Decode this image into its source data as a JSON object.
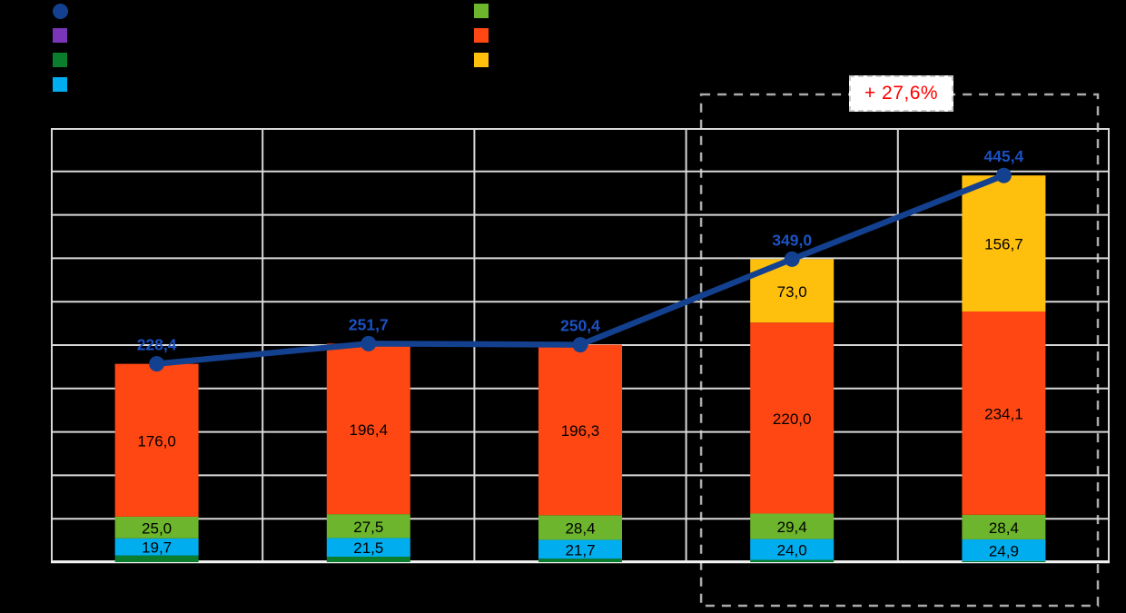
{
  "colors": {
    "background": "#000000",
    "gridline": "#D9D9D9",
    "axis_line": "#F2F2F2",
    "dashed_outline": "#ABABAB",
    "annotation_border": "#C9C9C9",
    "bar_label": "#000000"
  },
  "legend": {
    "left": [
      {
        "id": "total-line",
        "marker": "circle",
        "color": "#14418F",
        "label": ""
      },
      {
        "id": "series-purple",
        "marker": "square",
        "color": "#7A35B8",
        "label": ""
      },
      {
        "id": "series-dark-green",
        "marker": "square",
        "color": "#0B7E2D",
        "label": ""
      },
      {
        "id": "series-cyan",
        "marker": "square",
        "color": "#00AEEF",
        "label": ""
      }
    ],
    "right": [
      {
        "id": "series-green",
        "marker": "square",
        "color": "#6CB52C",
        "label": ""
      },
      {
        "id": "series-orange",
        "marker": "square",
        "color": "#FF4713",
        "label": ""
      },
      {
        "id": "series-yellow",
        "marker": "square",
        "color": "#FFC00D",
        "label": ""
      }
    ]
  },
  "chart_data": {
    "type": "bar",
    "subtype": "stacked-bars-with-total-line",
    "categories": [
      "",
      "",
      "",
      "",
      ""
    ],
    "series": [
      {
        "name": "bottom-dark-green",
        "color": "#0B7E2D",
        "labels_shown": false,
        "values": [
          7.7,
          6.3,
          4.0,
          2.6,
          1.3
        ]
      },
      {
        "name": "cyan",
        "color": "#00AEEF",
        "labels_shown": true,
        "values": [
          19.7,
          21.5,
          21.7,
          24.0,
          24.9
        ]
      },
      {
        "name": "green",
        "color": "#6CB52C",
        "labels_shown": true,
        "values": [
          25.0,
          27.5,
          28.4,
          29.4,
          28.4
        ]
      },
      {
        "name": "orange",
        "color": "#FF4713",
        "labels_shown": true,
        "values": [
          176.0,
          196.4,
          196.3,
          220.0,
          234.1
        ]
      },
      {
        "name": "yellow",
        "color": "#FFC00D",
        "labels_shown": true,
        "values": [
          0,
          0,
          0,
          73.0,
          156.7
        ]
      }
    ],
    "line_series": {
      "name": "total",
      "color": "#14418F",
      "label_color": "#1B52C4",
      "values": [
        228.4,
        251.7,
        250.4,
        349.0,
        445.4
      ]
    },
    "ylim": [
      0,
      500
    ],
    "gridline_step": 50,
    "grid": true,
    "decimal_separator": ",",
    "forecast_region": {
      "category_indexes": [
        3,
        4
      ]
    },
    "annotation": {
      "label": "+ 27,6%",
      "color": "#FF0000"
    }
  }
}
